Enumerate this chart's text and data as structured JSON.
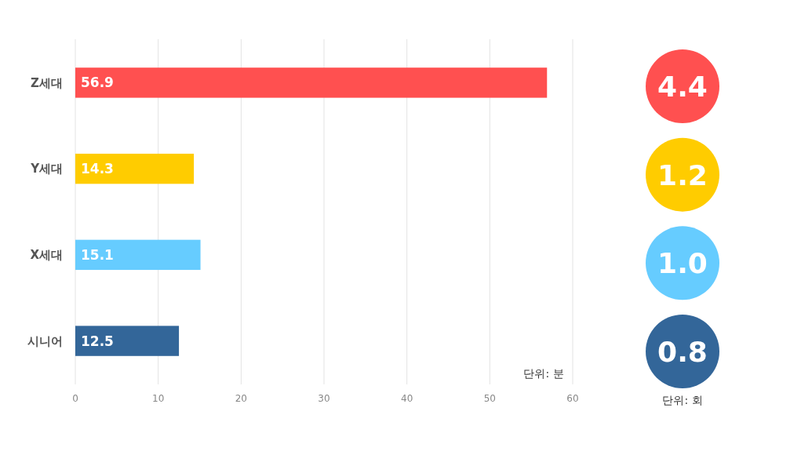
{
  "chart_data": [
    {
      "type": "bar",
      "orientation": "horizontal",
      "categories": [
        "Z세대",
        "Y세대",
        "X세대",
        "시니어"
      ],
      "values": [
        56.9,
        14.3,
        15.1,
        12.5
      ],
      "colors": [
        "#ff5050",
        "#ffcc00",
        "#66ccff",
        "#336699"
      ],
      "xlim": [
        0,
        60
      ],
      "xticks": [
        0,
        10,
        20,
        30,
        40,
        50,
        60
      ],
      "grid": "x",
      "data_labels": true,
      "annotations": [
        "단위: 분"
      ]
    },
    {
      "type": "other",
      "values": [
        4.4,
        1.2,
        1.0,
        0.8
      ],
      "value_labels": [
        "4.4",
        "1.2",
        "1.0",
        "0.8"
      ],
      "colors": [
        "#ff5050",
        "#ffcc00",
        "#66ccff",
        "#336699"
      ],
      "annotations": [
        "단위: 회"
      ]
    }
  ]
}
